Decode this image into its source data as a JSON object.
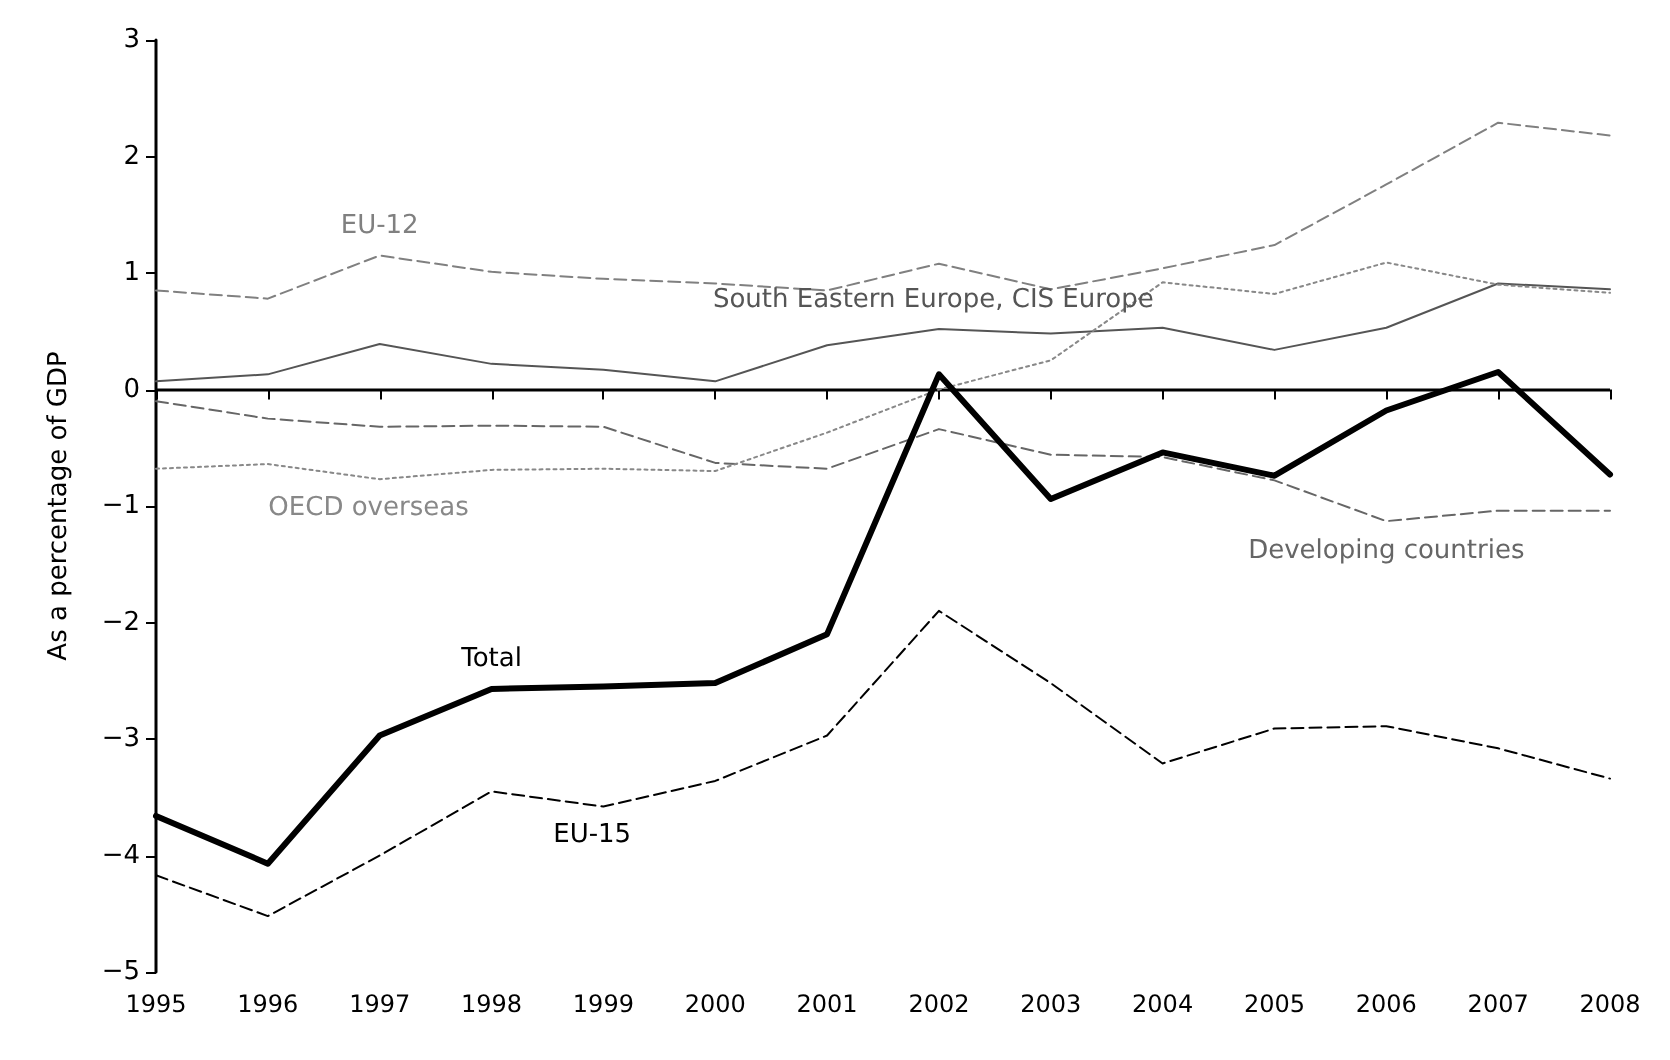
{
  "chart_data": {
    "type": "line",
    "ylabel": "As a percentage of GDP",
    "x": [
      1995,
      1996,
      1997,
      1998,
      1999,
      2000,
      2001,
      2002,
      2003,
      2004,
      2005,
      2006,
      2007,
      2008
    ],
    "xlim": [
      1995,
      2008
    ],
    "xticks": [
      1995,
      1996,
      1997,
      1998,
      1999,
      2000,
      2001,
      2002,
      2003,
      2004,
      2005,
      2006,
      2007,
      2008
    ],
    "ylim": [
      -5,
      3
    ],
    "yticks": [
      -5,
      -4,
      -3,
      -2,
      -1,
      0,
      1,
      2,
      3
    ],
    "grid": false,
    "legend": false,
    "marker": "none",
    "ref_lines": [
      {
        "axis": "y",
        "value": 0,
        "color": "#000000",
        "line_style": "solid"
      }
    ],
    "series": [
      {
        "name": "EU-12",
        "color": "#808080",
        "line_style": "dashed",
        "values": [
          0.85,
          0.78,
          1.15,
          1.01,
          0.95,
          0.91,
          0.85,
          1.08,
          0.86,
          1.04,
          1.24,
          1.76,
          2.29,
          2.18
        ]
      },
      {
        "name": "South Eastern Europe, CIS Europe",
        "color": "#555555",
        "line_style": "solid",
        "values": [
          0.07,
          0.13,
          0.39,
          0.22,
          0.17,
          0.07,
          0.38,
          0.52,
          0.48,
          0.53,
          0.34,
          0.53,
          0.91,
          0.86
        ]
      },
      {
        "name": "Developing countries",
        "color": "#666666",
        "line_style": "dashed",
        "values": [
          -0.1,
          -0.25,
          -0.32,
          -0.31,
          -0.32,
          -0.63,
          -0.68,
          -0.34,
          -0.56,
          -0.58,
          -0.78,
          -1.13,
          -1.04,
          -1.04
        ]
      },
      {
        "name": "OECD overseas",
        "color": "#888888",
        "line_style": "dotted",
        "values": [
          -0.68,
          -0.64,
          -0.77,
          -0.69,
          -0.68,
          -0.7,
          -0.37,
          0.0,
          0.25,
          0.92,
          0.82,
          1.09,
          0.9,
          0.83
        ]
      },
      {
        "name": "Total",
        "color": "#000000",
        "line_style": "solid",
        "values": [
          -3.66,
          -4.07,
          -2.97,
          -2.57,
          -2.55,
          -2.52,
          -2.1,
          0.13,
          -0.94,
          -0.54,
          -0.74,
          -0.18,
          0.15,
          -0.73
        ]
      },
      {
        "name": "EU-15",
        "color": "#000000",
        "line_style": "dashed",
        "values": [
          -4.17,
          -4.52,
          -4.0,
          -3.45,
          -3.58,
          -3.36,
          -2.97,
          -1.9,
          -2.52,
          -3.21,
          -2.91,
          -2.89,
          -3.08,
          -3.34
        ]
      }
    ]
  }
}
